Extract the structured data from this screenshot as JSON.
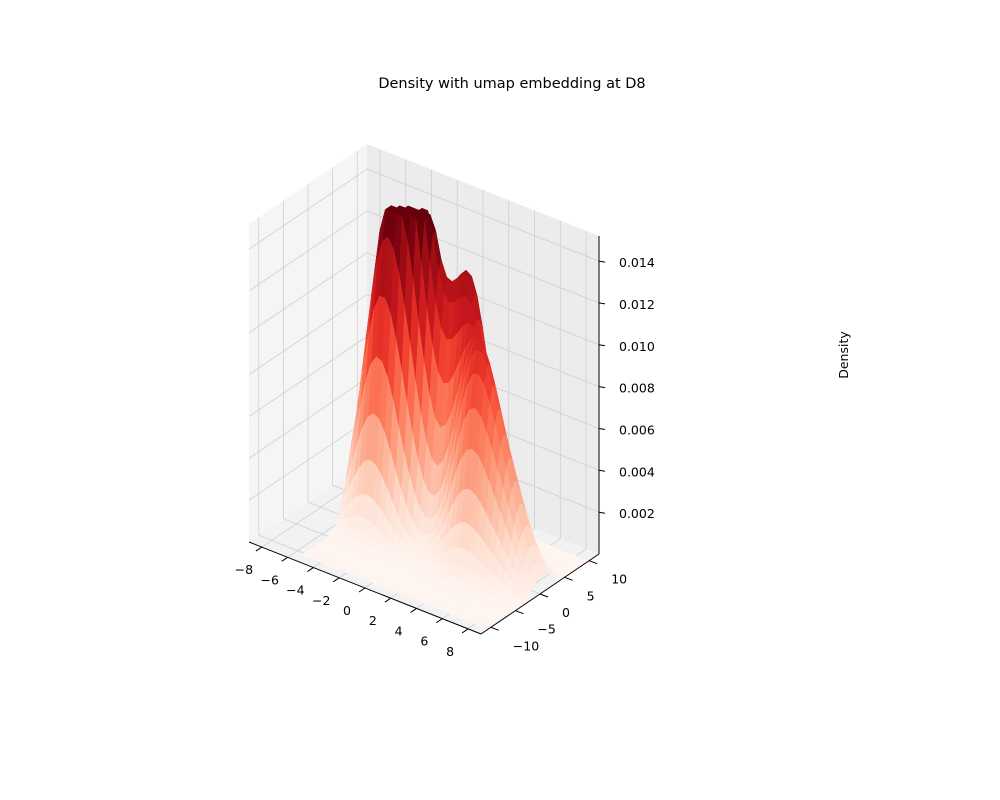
{
  "chart_data": {
    "type": "surface3d",
    "title": "Density with umap embedding at D8",
    "xlabel": "",
    "ylabel": "",
    "zlabel": "Density",
    "colormap": "Reds",
    "x_ticks": [
      -8,
      -6,
      -4,
      -2,
      0,
      2,
      4,
      6,
      8
    ],
    "y_ticks": [
      10,
      5,
      0,
      -5,
      -10
    ],
    "z_ticks": [
      0.014,
      0.012,
      0.01,
      0.008,
      0.006,
      0.004,
      0.002
    ],
    "x_tick_labels": [
      "−8",
      "−6",
      "−4",
      "−2",
      "0",
      "2",
      "4",
      "6",
      "8"
    ],
    "y_tick_labels": [
      "10",
      "5",
      "0",
      "−5",
      "−10"
    ],
    "z_tick_labels": [
      "0.014",
      "0.012",
      "0.010",
      "0.008",
      "0.006",
      "0.004",
      "0.002"
    ],
    "xlim": [
      -9,
      9
    ],
    "ylim": [
      -12,
      12
    ],
    "zlim": [
      0,
      0.0152
    ],
    "grid": true,
    "peaks": [
      {
        "x": -1.5,
        "y": 3.0,
        "z": 0.0152
      },
      {
        "x": -3.5,
        "y": 1.0,
        "z": 0.0118
      },
      {
        "x": 2.0,
        "y": 4.0,
        "z": 0.0116
      },
      {
        "x": 4.0,
        "y": 0.5,
        "z": 0.0088
      },
      {
        "x": 6.5,
        "y": 0.5,
        "z": 0.0037
      }
    ]
  }
}
